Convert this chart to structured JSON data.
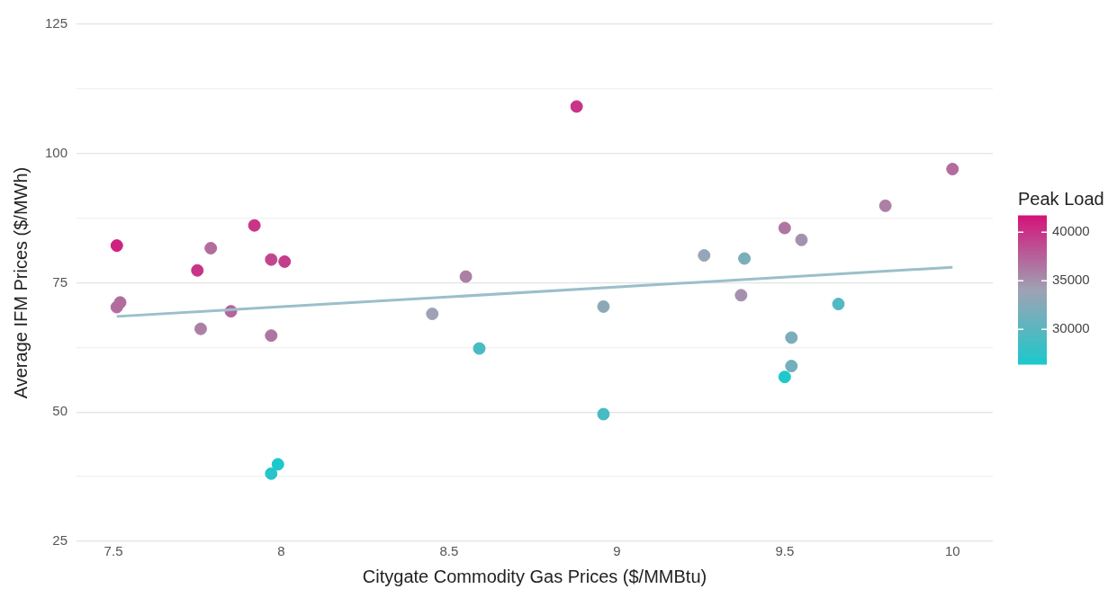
{
  "chart_data": {
    "type": "scatter",
    "xlabel": "Citygate Commodity Gas Prices ($/MMBtu)",
    "ylabel": "Average IFM Prices ($/MWh)",
    "clabel": "Peak Load",
    "clim": [
      26400,
      41700
    ],
    "cticks": [
      30000,
      35000,
      40000
    ],
    "colors": [
      "#1cc8cb",
      "#9ea3b4",
      "#d4147a"
    ],
    "xlim": [
      7.39,
      10.12
    ],
    "xticks": [
      7.5,
      8.0,
      8.5,
      9.0,
      9.5,
      10.0
    ],
    "ylim": [
      25,
      125
    ],
    "yticks": [
      25,
      {
        "value": 37.5,
        "label": null
      },
      50,
      {
        "value": 62.5,
        "label": null
      },
      75,
      {
        "value": 87.5,
        "label": null
      },
      100,
      {
        "value": 112.5,
        "label": null
      },
      125
    ],
    "grid": "y",
    "legend": false,
    "series": [
      {
        "marker": "circle",
        "x": [
          7.51,
          7.51,
          7.52,
          7.75,
          7.76,
          7.79,
          7.85,
          7.92,
          7.97,
          8.01,
          7.97,
          7.99,
          7.97,
          8.45,
          8.55,
          8.59,
          8.88,
          8.96,
          8.96,
          9.26,
          9.38,
          9.37,
          9.5,
          9.55,
          9.52,
          9.52,
          9.5,
          9.66,
          9.8,
          10.0
        ],
        "values": [
          82.2,
          70.3,
          71.2,
          77.4,
          66.1,
          81.7,
          69.5,
          86.1,
          79.5,
          79.1,
          64.8,
          39.9,
          38.1,
          69.0,
          76.2,
          62.3,
          109.1,
          70.4,
          49.6,
          80.3,
          79.7,
          72.6,
          85.6,
          83.3,
          64.4,
          58.9,
          56.8,
          70.9,
          89.9,
          97.0
        ],
        "cvalues": [
          41000,
          37000,
          37000,
          40000,
          36000,
          37000,
          37500,
          40000,
          39000,
          39500,
          36500,
          26000,
          27000,
          34000,
          36000,
          29000,
          40000,
          33000,
          29000,
          33500,
          32000,
          35000,
          36500,
          35000,
          32000,
          31500,
          26500,
          29500,
          36000,
          37000
        ],
        "colors": [
          "#cf217f",
          "#b36c9e",
          "#b36c9e",
          "#c83487",
          "#ac7fa5",
          "#b36c9e",
          "#b6639a",
          "#c83487",
          "#c1468e",
          "#c43d8b",
          "#af75a1",
          "#1cc8cb",
          "#26c5c9",
          "#9da3b4",
          "#ac7fa5",
          "#48bbc3",
          "#c83487",
          "#8ca8b7",
          "#48bbc3",
          "#95a6b6",
          "#7badba",
          "#a591ad",
          "#af75a1",
          "#a591ad",
          "#7badba",
          "#73afbc",
          "#1dc8cb",
          "#51b9c2",
          "#ac7fa5",
          "#b36c9e"
        ]
      },
      {
        "type": "line",
        "marker": "none",
        "color": "#9bbfcb",
        "x": [
          7.51,
          10.0
        ],
        "values": [
          68.5,
          78.0
        ]
      }
    ]
  }
}
